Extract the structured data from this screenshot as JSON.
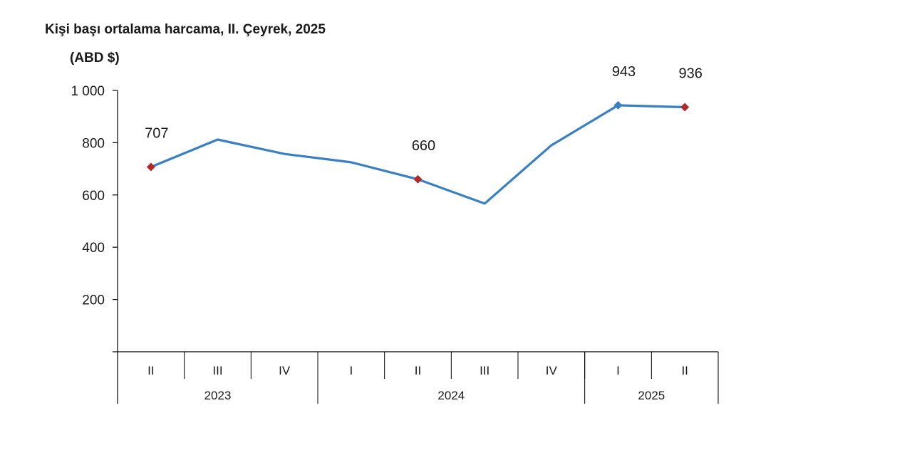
{
  "colors": {
    "line": "#3a7fc1",
    "marker_highlight": "#b22a2a",
    "marker_series": "#3a7fc1",
    "axis": "#000000"
  },
  "chart_data": {
    "type": "line",
    "title": "Kişi başı ortalama harcama, II. Çeyrek, 2025",
    "unit_label": "(ABD $)",
    "ylim": [
      0,
      1000
    ],
    "yticks": [
      200,
      400,
      600,
      800,
      1000
    ],
    "ytick_labels": [
      "200",
      "400",
      "600",
      "800",
      "1 000"
    ],
    "categories": [
      "II",
      "III",
      "IV",
      "I",
      "II",
      "III",
      "IV",
      "I",
      "II"
    ],
    "groups": [
      {
        "label": "2023",
        "count": 3
      },
      {
        "label": "2024",
        "count": 4
      },
      {
        "label": "2025",
        "count": 2
      }
    ],
    "series": [
      {
        "values": [
          707,
          812,
          757,
          725,
          660,
          567,
          790,
          943,
          936
        ]
      }
    ],
    "data_labels": [
      {
        "index": 0,
        "text": "707",
        "marker": "highlight"
      },
      {
        "index": 4,
        "text": "660",
        "marker": "highlight"
      },
      {
        "index": 7,
        "text": "943",
        "marker": "series"
      },
      {
        "index": 8,
        "text": "936",
        "marker": "highlight"
      }
    ],
    "grid": false,
    "legend": "none"
  }
}
